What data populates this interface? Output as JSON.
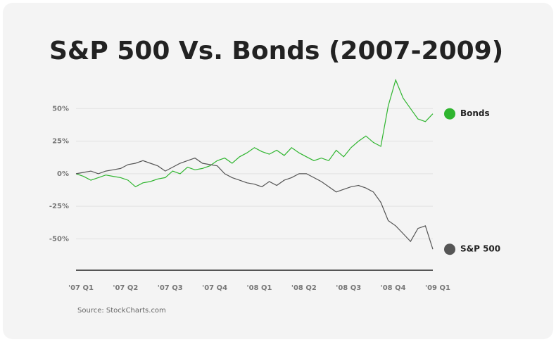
{
  "chart_data": {
    "type": "line",
    "title": "S&P 500 Vs. Bonds (2007-2009)",
    "source": "Source: StockCharts.com",
    "categories": [
      "'07 Q1",
      null,
      null,
      null,
      null,
      null,
      "'07 Q2",
      null,
      null,
      null,
      null,
      null,
      "'07 Q3",
      null,
      null,
      null,
      null,
      null,
      "'07 Q4",
      null,
      null,
      null,
      null,
      null,
      "'08 Q1",
      null,
      null,
      null,
      null,
      null,
      "'08 Q2",
      null,
      null,
      null,
      null,
      null,
      "'08 Q3",
      null,
      null,
      null,
      null,
      null,
      "'08 Q4",
      null,
      null,
      null,
      null,
      null,
      "'09 Q1"
    ],
    "series": [
      {
        "name": "Bonds",
        "color": "#2fb52f",
        "values": [
          0,
          -2,
          -5,
          -3,
          -1,
          -2,
          -3,
          -5,
          -10,
          -7,
          -6,
          -4,
          -3,
          2,
          0,
          5,
          3,
          4,
          6,
          10,
          12,
          8,
          13,
          16,
          20,
          17,
          15,
          18,
          14,
          20,
          16,
          13,
          10,
          12,
          10,
          18,
          13,
          20,
          25,
          29,
          24,
          21,
          52,
          72,
          58,
          50,
          42,
          40,
          46
        ]
      },
      {
        "name": "S&P 500",
        "color": "#555555",
        "values": [
          0,
          1,
          2,
          0,
          2,
          3,
          4,
          7,
          8,
          10,
          8,
          6,
          2,
          5,
          8,
          10,
          12,
          8,
          7,
          6,
          0,
          -3,
          -5,
          -7,
          -8,
          -10,
          -6,
          -9,
          -5,
          -3,
          0,
          0,
          -3,
          -6,
          -10,
          -14,
          -12,
          -10,
          -9,
          -11,
          -14,
          -22,
          -36,
          -40,
          -46,
          -52,
          -42,
          -40,
          -58
        ]
      }
    ],
    "ylim": [
      -73,
      75
    ],
    "yticks": [
      {
        "value": -50,
        "label": "-50%"
      },
      {
        "value": -25,
        "label": "-25%"
      },
      0,
      {
        "value": 0,
        "label": "0%"
      },
      {
        "value": 25,
        "label": "25%"
      },
      {
        "value": 50,
        "label": "50%"
      }
    ],
    "grid": true
  }
}
